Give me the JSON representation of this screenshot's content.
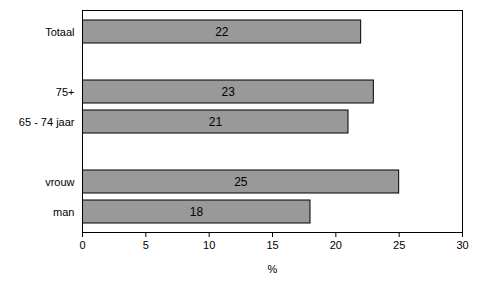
{
  "chart_data": {
    "type": "bar",
    "orientation": "horizontal",
    "categories": [
      "Totaal",
      null,
      "75+",
      "65 - 74 jaar",
      null,
      "vrouw",
      "man"
    ],
    "values": [
      22,
      null,
      23,
      21,
      null,
      25,
      18
    ],
    "color": "#999999",
    "xlabel": "%",
    "xlim": [
      0,
      30
    ],
    "xticks": [
      0,
      5,
      10,
      15,
      20,
      25,
      30
    ],
    "data_labels": true,
    "grid": false
  }
}
